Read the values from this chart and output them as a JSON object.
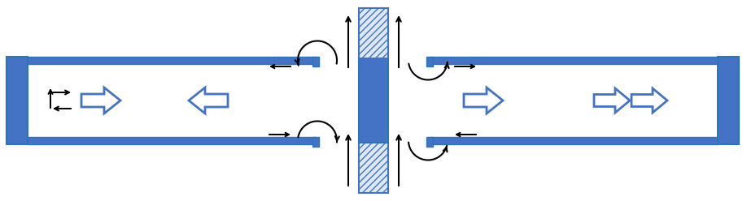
{
  "fig_width": 9.18,
  "fig_height": 2.48,
  "dpi": 100,
  "bg_color": "#ffffff",
  "blue_dark": "#4472C4",
  "blue_mid": "#2E75B6",
  "blue_light": "#9DC3E6"
}
